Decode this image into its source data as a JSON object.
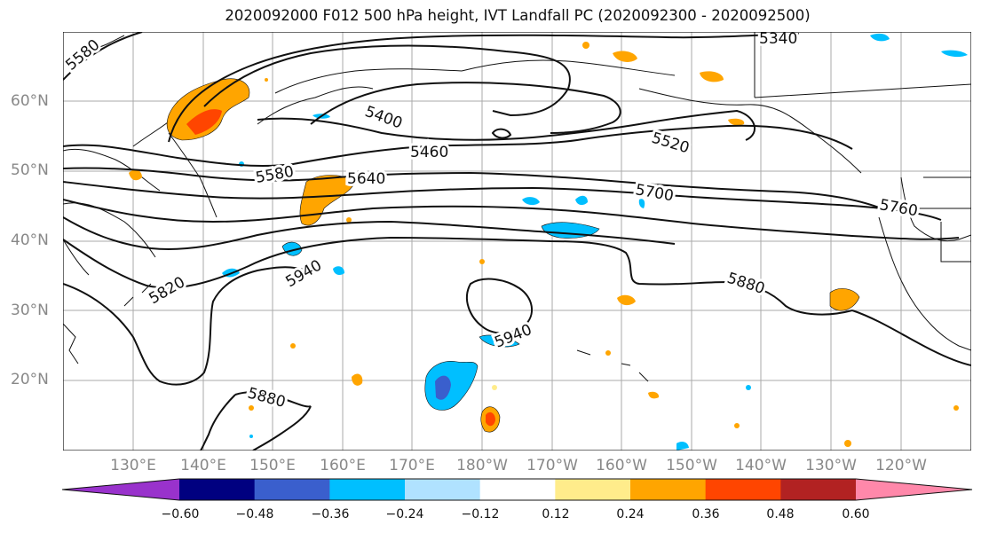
{
  "title": "2020092000 F012 500 hPa height, IVT Landfall PC (2020092300 - 2020092500)",
  "latitude_labels": [
    "60°N",
    "50°N",
    "40°N",
    "30°N",
    "20°N"
  ],
  "longitude_labels": [
    "130°E",
    "140°E",
    "150°E",
    "160°E",
    "170°E",
    "180°W",
    "170°W",
    "160°W",
    "150°W",
    "140°W",
    "130°W",
    "120°W"
  ],
  "contour_labels": [
    "5580",
    "5340",
    "5400",
    "5460",
    "5520",
    "5580",
    "5640",
    "5700",
    "5760",
    "5820",
    "5940",
    "5880",
    "5940",
    "5880"
  ],
  "colorbar": {
    "ticks": [
      "−0.60",
      "−0.48",
      "−0.36",
      "−0.24",
      "−0.12",
      "0.12",
      "0.24",
      "0.36",
      "0.48",
      "0.60"
    ],
    "colors": [
      "#9932CC",
      "#000080",
      "#3A5FCD",
      "#00BFFF",
      "#B0E2FF",
      "#FFFFFF",
      "#FFEC8B",
      "#FFA500",
      "#FF4500",
      "#B22222",
      "#FF88AA"
    ]
  }
}
